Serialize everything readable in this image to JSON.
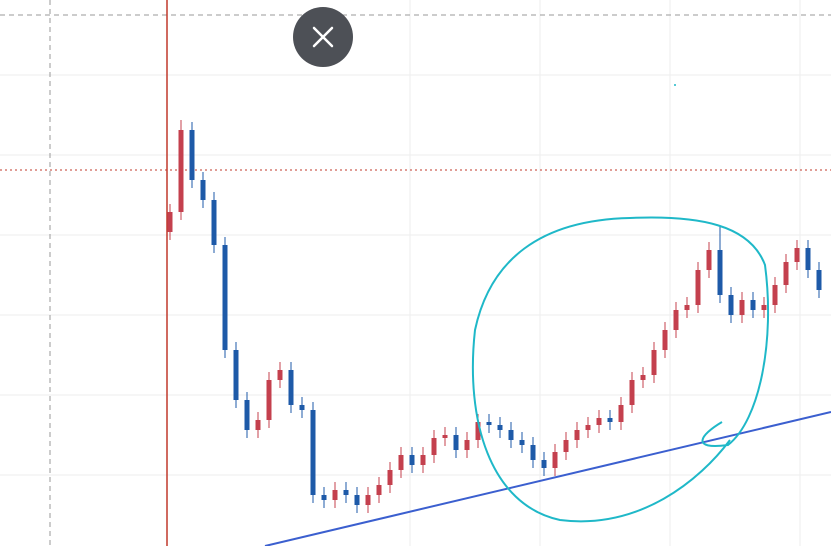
{
  "chart_data": {
    "type": "candlestick",
    "up_color": "#c4404e",
    "down_color": "#1e5aa8",
    "series": [
      {
        "open": [
          314,
          334,
          416,
          366,
          346,
          301,
          196,
          146,
          116,
          126,
          166,
          176,
          141,
          136,
          51,
          46,
          56,
          51,
          41,
          51,
          61,
          76,
          91,
          81,
          91,
          108,
          111,
          96,
          106,
          124,
          121,
          116,
          106,
          101,
          86,
          78,
          94,
          106,
          116,
          121,
          128,
          124,
          141,
          166,
          171,
          196,
          216,
          236,
          241,
          276,
          296,
          251,
          231,
          246,
          236,
          241,
          261,
          284,
          298,
          276
        ],
        "high": [
          342,
          426,
          424,
          374,
          354,
          309,
          204,
          154,
          134,
          174,
          184,
          184,
          149,
          144,
          59,
          64,
          64,
          59,
          59,
          69,
          84,
          99,
          99,
          99,
          116,
          119,
          119,
          114,
          132,
          132,
          129,
          124,
          114,
          109,
          94,
          102,
          114,
          124,
          129,
          136,
          136,
          149,
          174,
          179,
          204,
          224,
          244,
          249,
          284,
          304,
          320,
          259,
          254,
          254,
          249,
          269,
          292,
          306,
          306,
          284
        ],
        "low": [
          306,
          326,
          358,
          338,
          293,
          188,
          138,
          108,
          108,
          118,
          158,
          133,
          128,
          43,
          38,
          38,
          43,
          33,
          33,
          43,
          53,
          68,
          73,
          73,
          83,
          100,
          88,
          88,
          98,
          113,
          108,
          98,
          93,
          78,
          70,
          70,
          86,
          98,
          108,
          113,
          116,
          116,
          133,
          158,
          163,
          188,
          208,
          228,
          233,
          268,
          243,
          223,
          223,
          228,
          228,
          233,
          253,
          276,
          268,
          248
        ],
        "close": [
          334,
          416,
          366,
          346,
          301,
          196,
          146,
          116,
          126,
          166,
          176,
          141,
          136,
          51,
          46,
          56,
          51,
          41,
          51,
          61,
          76,
          91,
          81,
          91,
          108,
          111,
          96,
          106,
          124,
          121,
          116,
          106,
          101,
          86,
          78,
          94,
          106,
          116,
          121,
          128,
          124,
          141,
          166,
          171,
          196,
          216,
          236,
          241,
          276,
          296,
          251,
          231,
          246,
          236,
          241,
          261,
          284,
          298,
          276,
          256
        ]
      }
    ]
  }
}
